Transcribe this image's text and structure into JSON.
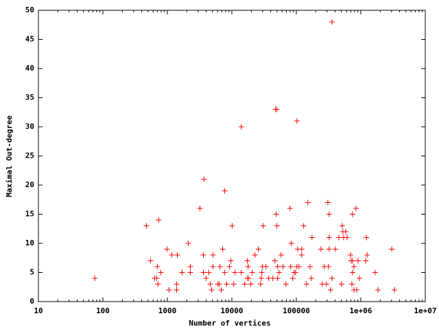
{
  "chart_data": {
    "type": "scatter",
    "xlabel": "Number of vertices",
    "ylabel": "Maximal Out-degree",
    "xlog": true,
    "color": "#ff0000",
    "xlim": [
      10,
      10000000
    ],
    "ylim": [
      0,
      50
    ],
    "xticks": [
      10,
      100,
      1000,
      10000,
      100000,
      {
        "value": 1000000,
        "label": "1e+06"
      },
      {
        "value": 10000000,
        "label": "1e+07"
      }
    ],
    "yticks": [
      0,
      5,
      10,
      15,
      20,
      25,
      30,
      35,
      40,
      45,
      50
    ],
    "x": [
      75,
      472,
      547,
      634,
      682,
      698,
      716,
      734,
      790,
      986,
      1060,
      1170,
      1430,
      1390,
      1390,
      1690,
      2110,
      2270,
      2270,
      3200,
      3620,
      3710,
      3620,
      3990,
      4400,
      4630,
      4860,
      5100,
      5100,
      6060,
      6370,
      6530,
      6860,
      7200,
      7750,
      7750,
      8340,
      9200,
      9660,
      10100,
      10700,
      11200,
      14000,
      14000,
      15800,
      17400,
      17400,
      17900,
      18300,
      19700,
      20700,
      22800,
      25800,
      27800,
      28500,
      29200,
      29900,
      30600,
      33800,
      37300,
      43200,
      46500,
      47600,
      50000,
      48800,
      50000,
      51300,
      51300,
      53900,
      58000,
      62400,
      68900,
      79800,
      81800,
      83800,
      88100,
      92500,
      97100,
      102000,
      102000,
      105000,
      110000,
      121000,
      121000,
      130000,
      144000,
      151000,
      163000,
      171000,
      175000,
      241000,
      253000,
      272000,
      293000,
      308000,
      315000,
      323000,
      323000,
      323000,
      340000,
      357000,
      357000,
      403000,
      456000,
      503000,
      515000,
      528000,
      541000,
      582000,
      612000,
      692000,
      709000,
      727000,
      745000,
      745000,
      745000,
      782000,
      782000,
      842000,
      862000,
      906000,
      952000,
      1190000,
      1220000,
      1250000,
      1670000,
      1850000,
      3020000,
      3330000
    ],
    "y": [
      4,
      13,
      7,
      4,
      4,
      6,
      3,
      14,
      5,
      9,
      2,
      8,
      8,
      3,
      2,
      5,
      10,
      6,
      5,
      16,
      5,
      21,
      8,
      4,
      5,
      3,
      2,
      8,
      6,
      3,
      3,
      6,
      2,
      9,
      19,
      5,
      3,
      6,
      7,
      13,
      3,
      5,
      30,
      5,
      3,
      7,
      4,
      6,
      4,
      3,
      5,
      8,
      9,
      3,
      4,
      5,
      6,
      13,
      6,
      4,
      4,
      7,
      33,
      33,
      15,
      13,
      6,
      4,
      5,
      8,
      6,
      3,
      16,
      6,
      10,
      4,
      5,
      5,
      31,
      6,
      9,
      6,
      8,
      9,
      13,
      3,
      17,
      6,
      4,
      11,
      9,
      3,
      6,
      3,
      17,
      6,
      11,
      9,
      15,
      2,
      48,
      4,
      9,
      11,
      3,
      13,
      12,
      11,
      12,
      11,
      8,
      7,
      3,
      15,
      5,
      7,
      6,
      2,
      16,
      2,
      7,
      4,
      7,
      11,
      8,
      5,
      2,
      9,
      2
    ]
  }
}
